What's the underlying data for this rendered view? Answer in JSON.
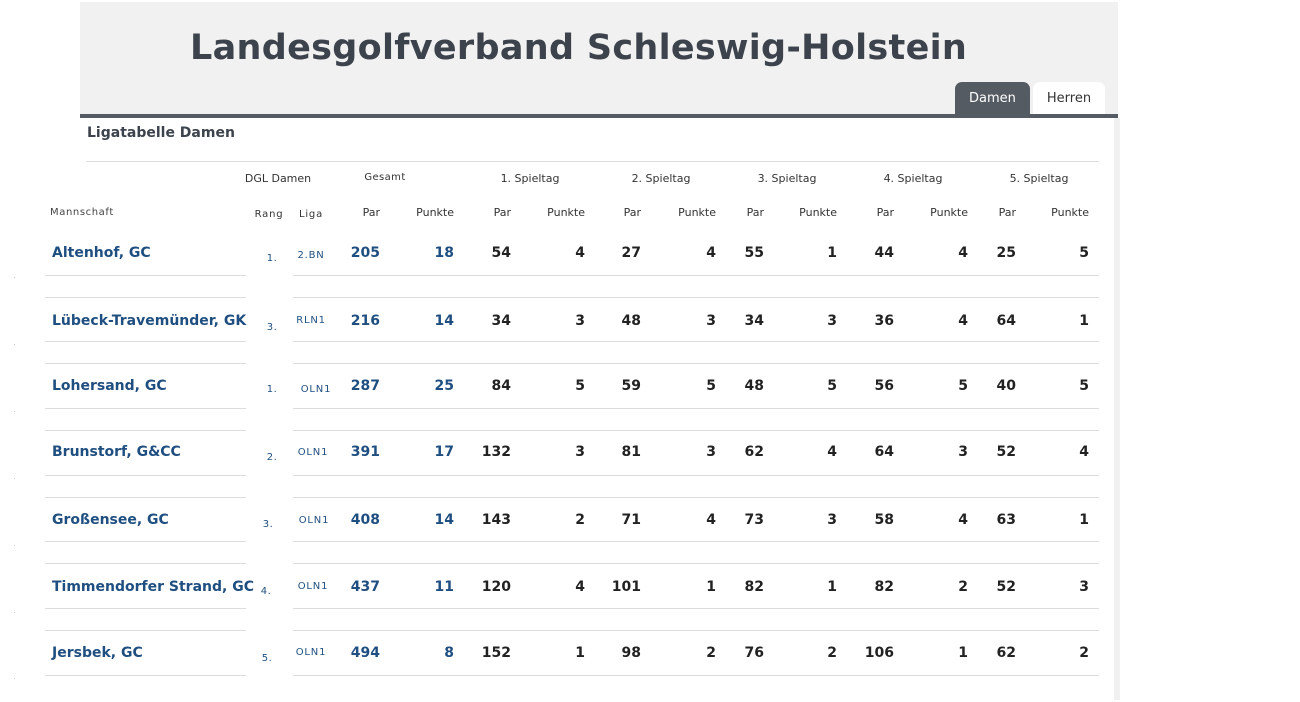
{
  "header": {
    "title": "Landesgolfverband Schleswig-Holstein",
    "tabs": [
      {
        "label": "Damen",
        "active": true
      },
      {
        "label": "Herren",
        "active": false
      }
    ]
  },
  "section": {
    "title": "Ligatabelle Damen"
  },
  "table": {
    "group_headers": {
      "dgl": "DGL Damen",
      "gesamt": "Gesamt",
      "st1": "1. Spieltag",
      "st2": "2. Spieltag",
      "st3": "3. Spieltag",
      "st4": "4. Spieltag",
      "st5": "5. Spieltag"
    },
    "column_headers": {
      "mannschaft": "Mannschaft",
      "rang": "Rang",
      "liga": "Liga",
      "par": "Par",
      "punkte": "Punkte"
    },
    "rows": [
      {
        "team": "Altenhof, GC",
        "rang": "1.",
        "liga": "2.BN",
        "par": "205",
        "punkte": "18",
        "spieltage": [
          [
            "54",
            "4"
          ],
          [
            "27",
            "4"
          ],
          [
            "55",
            "1"
          ],
          [
            "44",
            "4"
          ],
          [
            "25",
            "5"
          ]
        ]
      },
      {
        "team": "Lübeck-Travemünder, GK",
        "rang": "3.",
        "liga": "RLN1",
        "par": "216",
        "punkte": "14",
        "spieltage": [
          [
            "34",
            "3"
          ],
          [
            "48",
            "3"
          ],
          [
            "34",
            "3"
          ],
          [
            "36",
            "4"
          ],
          [
            "64",
            "1"
          ]
        ]
      },
      {
        "team": "Lohersand, GC",
        "rang": "1.",
        "liga": "OLN1",
        "par": "287",
        "punkte": "25",
        "spieltage": [
          [
            "84",
            "5"
          ],
          [
            "59",
            "5"
          ],
          [
            "48",
            "5"
          ],
          [
            "56",
            "5"
          ],
          [
            "40",
            "5"
          ]
        ]
      },
      {
        "team": "Brunstorf, G&CC",
        "rang": "2.",
        "liga": "OLN1",
        "par": "391",
        "punkte": "17",
        "spieltage": [
          [
            "132",
            "3"
          ],
          [
            "81",
            "3"
          ],
          [
            "62",
            "4"
          ],
          [
            "64",
            "3"
          ],
          [
            "52",
            "4"
          ]
        ]
      },
      {
        "team": "Großensee, GC",
        "rang": "3.",
        "liga": "OLN1",
        "par": "408",
        "punkte": "14",
        "spieltage": [
          [
            "143",
            "2"
          ],
          [
            "71",
            "4"
          ],
          [
            "73",
            "3"
          ],
          [
            "58",
            "4"
          ],
          [
            "63",
            "1"
          ]
        ]
      },
      {
        "team": "Timmendorfer Strand, GC",
        "rang": "4.",
        "liga": "OLN1",
        "par": "437",
        "punkte": "11",
        "spieltage": [
          [
            "120",
            "4"
          ],
          [
            "101",
            "1"
          ],
          [
            "82",
            "1"
          ],
          [
            "82",
            "2"
          ],
          [
            "52",
            "3"
          ]
        ]
      },
      {
        "team": "Jersbek, GC",
        "rang": "5.",
        "liga": "OLN1",
        "par": "494",
        "punkte": "8",
        "spieltage": [
          [
            "152",
            "1"
          ],
          [
            "98",
            "2"
          ],
          [
            "76",
            "2"
          ],
          [
            "106",
            "1"
          ],
          [
            "62",
            "2"
          ]
        ]
      }
    ]
  },
  "colors": {
    "header_bg": "#f1f1f1",
    "title": "#3c434c",
    "tab_active_bg": "#545b63",
    "link_blue": "#1f4f80",
    "divider": "#dcdcdc"
  }
}
